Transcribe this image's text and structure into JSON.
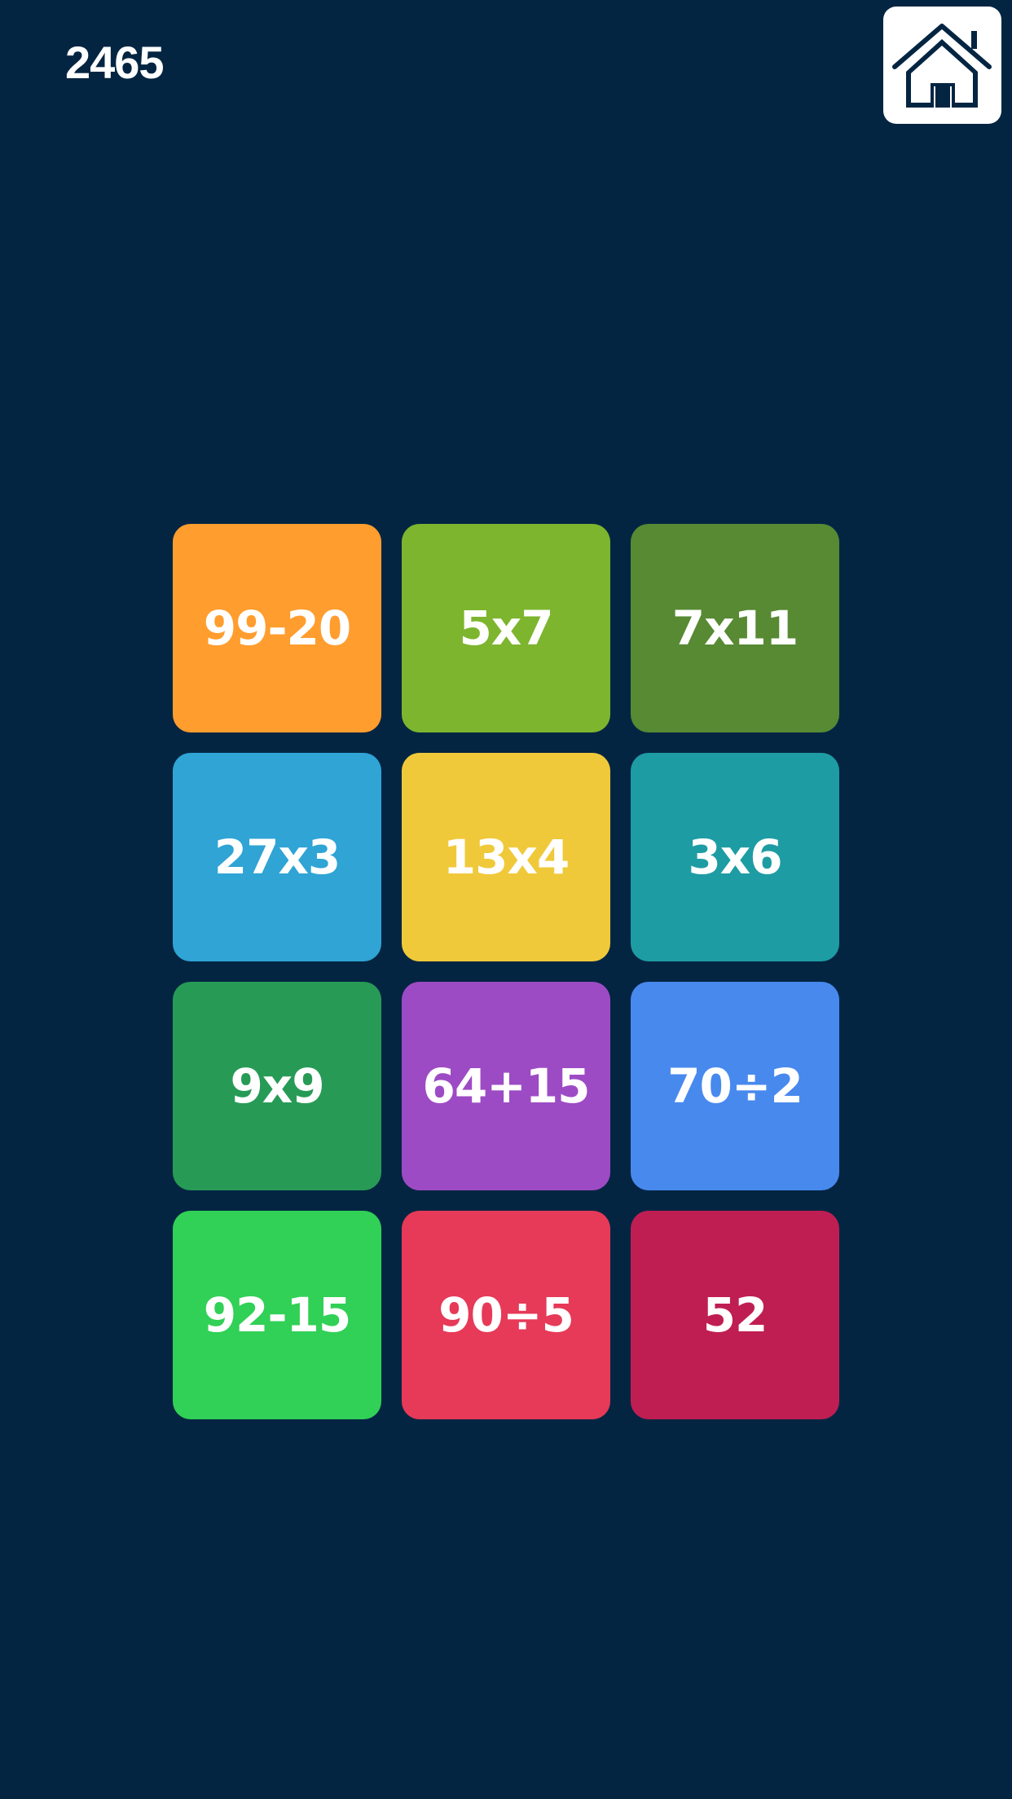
{
  "score": "2465",
  "home_button": {
    "icon": "home-icon"
  },
  "colors": {
    "background": "#042542"
  },
  "tiles": [
    {
      "label": "99-20",
      "color": "#FF9D2E"
    },
    {
      "label": "5x7",
      "color": "#7DB52E"
    },
    {
      "label": "7x11",
      "color": "#578A33"
    },
    {
      "label": "27x3",
      "color": "#2FA4D5"
    },
    {
      "label": "13x4",
      "color": "#F0C93A"
    },
    {
      "label": "3x6",
      "color": "#1E9CA3"
    },
    {
      "label": "9x9",
      "color": "#279B56"
    },
    {
      "label": "64+15",
      "color": "#9D4BC5"
    },
    {
      "label": "70÷2",
      "color": "#4889EE"
    },
    {
      "label": "92-15",
      "color": "#31D056"
    },
    {
      "label": "90÷5",
      "color": "#E63A58"
    },
    {
      "label": "52",
      "color": "#BF1E52"
    }
  ]
}
